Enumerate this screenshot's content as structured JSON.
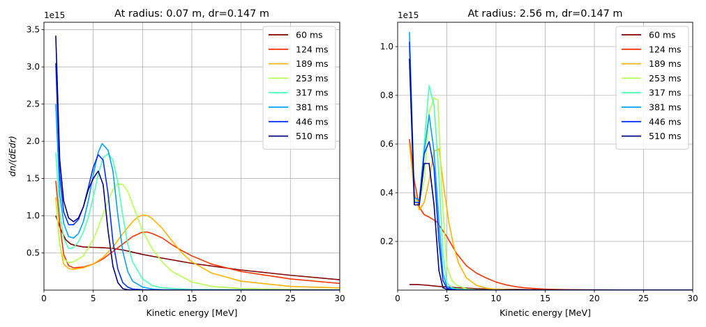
{
  "chart_data": [
    {
      "type": "line",
      "title": "At radius: 0.07 m, dr=0.147 m",
      "xlabel": "Kinetic energy [MeV]",
      "ylabel": "dn/(dEdr)",
      "offset_label": "1e15",
      "xlim": [
        0,
        30
      ],
      "ylim": [
        0,
        3.6
      ],
      "xticks": [
        "0",
        "5",
        "10",
        "15",
        "20",
        "25",
        "30"
      ],
      "yticks": [
        "0.5",
        "1.0",
        "1.5",
        "2.0",
        "2.5",
        "3.0",
        "3.5"
      ],
      "grid": true,
      "legend": "top-right",
      "series": [
        {
          "name": "60 ms",
          "color": "#800000",
          "x": [
            1.2,
            1.7,
            2.2,
            2.7,
            3.2,
            4,
            5,
            6,
            7,
            8,
            9,
            10,
            12,
            15,
            20,
            25,
            30
          ],
          "y": [
            1.0,
            0.82,
            0.68,
            0.62,
            0.6,
            0.58,
            0.575,
            0.57,
            0.56,
            0.54,
            0.51,
            0.48,
            0.43,
            0.36,
            0.27,
            0.2,
            0.14
          ]
        },
        {
          "name": "124 ms",
          "color": "#ff3300",
          "x": [
            1.2,
            1.6,
            2.0,
            2.5,
            3,
            4,
            5,
            6,
            7,
            8,
            9,
            10,
            10.5,
            11,
            12,
            13,
            14,
            15,
            17,
            20,
            25,
            30
          ],
          "y": [
            1.47,
            0.9,
            0.48,
            0.33,
            0.3,
            0.31,
            0.35,
            0.42,
            0.52,
            0.62,
            0.72,
            0.78,
            0.78,
            0.76,
            0.7,
            0.61,
            0.53,
            0.46,
            0.35,
            0.25,
            0.15,
            0.09
          ]
        },
        {
          "name": "189 ms",
          "color": "#ffb300",
          "x": [
            1.2,
            1.6,
            2.0,
            2.5,
            3,
            4,
            5,
            6,
            7,
            8,
            9,
            9.5,
            10,
            10.5,
            11,
            12,
            13,
            14,
            15,
            17,
            20,
            25,
            30
          ],
          "y": [
            1.25,
            0.62,
            0.35,
            0.29,
            0.28,
            0.3,
            0.35,
            0.44,
            0.58,
            0.76,
            0.92,
            0.98,
            1.01,
            1.0,
            0.96,
            0.83,
            0.66,
            0.5,
            0.38,
            0.23,
            0.12,
            0.05,
            0.03
          ]
        },
        {
          "name": "253 ms",
          "color": "#b3ff4d",
          "x": [
            1.2,
            1.6,
            2.0,
            2.5,
            3,
            4,
            5,
            5.5,
            6,
            6.5,
            7,
            7.5,
            8,
            8.5,
            9,
            10,
            11,
            12,
            13,
            15,
            17,
            20,
            25,
            30
          ],
          "y": [
            1.2,
            0.6,
            0.42,
            0.37,
            0.38,
            0.46,
            0.68,
            0.84,
            1.02,
            1.2,
            1.35,
            1.43,
            1.42,
            1.33,
            1.15,
            0.8,
            0.55,
            0.38,
            0.25,
            0.11,
            0.05,
            0.02,
            0.01,
            0.005
          ]
        },
        {
          "name": "317 ms",
          "color": "#4dffb3",
          "x": [
            1.2,
            1.6,
            2.0,
            2.5,
            3,
            3.5,
            4,
            4.5,
            5,
            5.5,
            6,
            6.5,
            7,
            7.5,
            8,
            8.5,
            9,
            10,
            11,
            12,
            15,
            20,
            25,
            30
          ],
          "y": [
            1.85,
            1.05,
            0.7,
            0.56,
            0.57,
            0.65,
            0.78,
            0.98,
            1.25,
            1.55,
            1.78,
            1.83,
            1.75,
            1.45,
            1.0,
            0.62,
            0.38,
            0.15,
            0.06,
            0.03,
            0.01,
            0.005,
            0.002,
            0.001
          ]
        },
        {
          "name": "381 ms",
          "color": "#00a0ff",
          "x": [
            1.2,
            1.6,
            2.0,
            2.5,
            3,
            3.5,
            4,
            4.5,
            5,
            5.5,
            5.9,
            6.5,
            7,
            7.5,
            8,
            8.5,
            9,
            10,
            11,
            12,
            15,
            20,
            25,
            30
          ],
          "y": [
            2.5,
            1.3,
            0.9,
            0.72,
            0.7,
            0.76,
            0.92,
            1.2,
            1.55,
            1.85,
            1.97,
            1.88,
            1.6,
            1.0,
            0.52,
            0.25,
            0.12,
            0.04,
            0.015,
            0.005,
            0.002,
            0.001,
            0.001,
            0.001
          ]
        },
        {
          "name": "446 ms",
          "color": "#0030ff",
          "x": [
            1.2,
            1.6,
            2.0,
            2.5,
            3,
            3.5,
            4,
            4.5,
            5,
            5.5,
            6,
            6.5,
            7,
            7.5,
            8,
            8.5,
            9,
            10,
            12,
            15,
            20,
            25,
            30
          ],
          "y": [
            3.05,
            1.55,
            1.05,
            0.88,
            0.88,
            0.95,
            1.12,
            1.38,
            1.65,
            1.82,
            1.75,
            1.3,
            0.65,
            0.28,
            0.1,
            0.04,
            0.015,
            0.005,
            0.002,
            0.001,
            0.001,
            0.001,
            0.001
          ]
        },
        {
          "name": "510 ms",
          "color": "#000080",
          "x": [
            1.2,
            1.6,
            2.0,
            2.5,
            3,
            3.5,
            4,
            4.5,
            5,
            5.5,
            6,
            6.5,
            7,
            7.5,
            8,
            8.5,
            9,
            10,
            12,
            15,
            20,
            25,
            30
          ],
          "y": [
            3.42,
            1.75,
            1.2,
            0.97,
            0.92,
            0.97,
            1.12,
            1.35,
            1.5,
            1.6,
            1.42,
            0.8,
            0.32,
            0.1,
            0.02,
            0.005,
            0.002,
            0.001,
            0.001,
            0.001,
            0.001,
            0.001,
            0.001
          ]
        }
      ]
    },
    {
      "type": "line",
      "title": "At radius: 2.56 m, dr=0.147 m",
      "xlabel": "Kinetic energy [MeV]",
      "ylabel": "",
      "offset_label": "1e15",
      "xlim": [
        0,
        30
      ],
      "ylim": [
        0,
        1.1
      ],
      "xticks": [
        "0",
        "5",
        "10",
        "15",
        "20",
        "25",
        "30"
      ],
      "yticks": [
        "0.2",
        "0.4",
        "0.6",
        "0.8",
        "1.0"
      ],
      "grid": true,
      "legend": "top-right",
      "series": [
        {
          "name": "60 ms",
          "color": "#800000",
          "x": [
            1.2,
            2,
            3,
            4,
            5,
            6,
            7,
            8,
            10,
            15,
            20,
            25,
            30
          ],
          "y": [
            0.023,
            0.023,
            0.02,
            0.016,
            0.013,
            0.01,
            0.008,
            0.006,
            0.004,
            0.001,
            0.001,
            0.0005,
            0.0005
          ]
        },
        {
          "name": "124 ms",
          "color": "#ff3300",
          "x": [
            1.2,
            1.7,
            2.2,
            2.7,
            3.2,
            4,
            5,
            6,
            7,
            8,
            9,
            10,
            11,
            12,
            13,
            15,
            17,
            20,
            25,
            30
          ],
          "y": [
            0.62,
            0.45,
            0.34,
            0.31,
            0.3,
            0.28,
            0.22,
            0.15,
            0.1,
            0.07,
            0.05,
            0.033,
            0.022,
            0.014,
            0.009,
            0.004,
            0.002,
            0.001,
            0.0005,
            0.0005
          ]
        },
        {
          "name": "189 ms",
          "color": "#ffb300",
          "x": [
            1.2,
            1.7,
            2.2,
            2.7,
            3.2,
            3.7,
            4.2,
            4.7,
            5.2,
            5.7,
            6.2,
            7,
            8,
            9,
            10,
            12,
            15,
            20,
            25,
            30
          ],
          "y": [
            0.6,
            0.4,
            0.33,
            0.36,
            0.45,
            0.57,
            0.58,
            0.42,
            0.28,
            0.18,
            0.11,
            0.05,
            0.02,
            0.008,
            0.004,
            0.001,
            0.0005,
            0.0005,
            0.0005,
            0.0005
          ]
        },
        {
          "name": "253 ms",
          "color": "#b3ff4d",
          "x": [
            1.2,
            1.7,
            2.2,
            2.7,
            3.2,
            3.7,
            4.1,
            4.5,
            5,
            5.5,
            6,
            7,
            8,
            10,
            15,
            20,
            25,
            30
          ],
          "y": [
            0.92,
            0.37,
            0.36,
            0.45,
            0.73,
            0.79,
            0.78,
            0.4,
            0.1,
            0.04,
            0.02,
            0.005,
            0.002,
            0.001,
            0.0005,
            0.0005,
            0.0005,
            0.0005
          ]
        },
        {
          "name": "317 ms",
          "color": "#4dffb3",
          "x": [
            1.2,
            1.7,
            2.2,
            2.7,
            3.2,
            3.7,
            4.2,
            4.6,
            5,
            5.5,
            6,
            7,
            8,
            10,
            15,
            20,
            25,
            30
          ],
          "y": [
            1.0,
            0.36,
            0.36,
            0.6,
            0.84,
            0.76,
            0.47,
            0.15,
            0.03,
            0.01,
            0.005,
            0.002,
            0.001,
            0.0005,
            0.0005,
            0.0005,
            0.0005,
            0.0005
          ]
        },
        {
          "name": "381 ms",
          "color": "#00a0ff",
          "x": [
            1.2,
            1.7,
            2.2,
            2.7,
            3.2,
            3.7,
            4.2,
            4.6,
            5,
            5.5,
            6,
            7,
            8,
            10,
            15,
            20,
            25,
            30
          ],
          "y": [
            1.06,
            0.38,
            0.37,
            0.57,
            0.72,
            0.57,
            0.28,
            0.07,
            0.015,
            0.005,
            0.002,
            0.001,
            0.0005,
            0.0005,
            0.0005,
            0.0005,
            0.0005,
            0.0005
          ]
        },
        {
          "name": "446 ms",
          "color": "#0030ff",
          "x": [
            1.2,
            1.7,
            2.2,
            2.7,
            3.2,
            3.7,
            4.2,
            4.6,
            5,
            5.5,
            6,
            7,
            8,
            10,
            15,
            20,
            25,
            30
          ],
          "y": [
            1.02,
            0.36,
            0.36,
            0.56,
            0.61,
            0.5,
            0.2,
            0.04,
            0.008,
            0.003,
            0.001,
            0.0005,
            0.0005,
            0.0005,
            0.0005,
            0.0005,
            0.0005,
            0.0005
          ]
        },
        {
          "name": "510 ms",
          "color": "#000080",
          "x": [
            1.2,
            1.7,
            2.2,
            2.7,
            3.2,
            3.7,
            4.2,
            4.6,
            5,
            5.5,
            6,
            7,
            8,
            10,
            15,
            20,
            25,
            30
          ],
          "y": [
            0.95,
            0.35,
            0.35,
            0.52,
            0.52,
            0.35,
            0.08,
            0.01,
            0.003,
            0.001,
            0.0005,
            0.0005,
            0.0005,
            0.0005,
            0.0005,
            0.0005,
            0.0005,
            0.0005
          ]
        }
      ]
    }
  ]
}
